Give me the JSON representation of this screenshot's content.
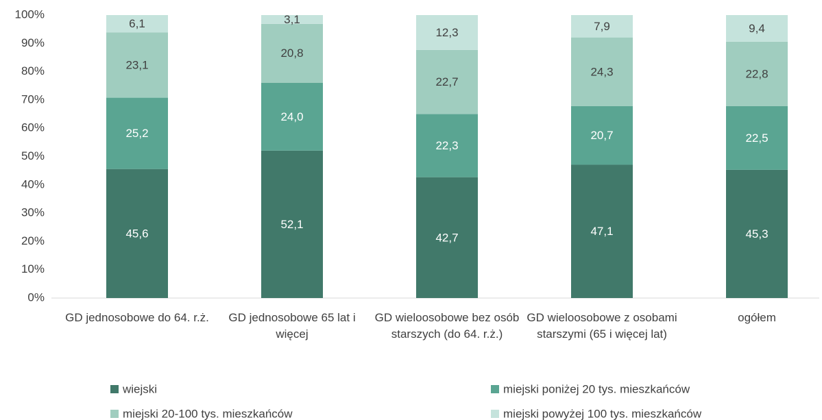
{
  "chart_data": {
    "type": "stacked_bar",
    "categories": [
      "GD jednosobowe do 64. r.ż.",
      "GD jednosobowe 65 lat i więcej",
      "GD wieloosobowe bez osób starszych (do 64. r.ż.)",
      "GD wieloosobowe z osobami starszymi (65 i więcej lat)",
      "ogółem"
    ],
    "series": [
      {
        "name": "wiejski",
        "color": "#41796a",
        "values": [
          45.6,
          52.1,
          42.7,
          47.1,
          45.3
        ],
        "value_labels": [
          "45,6",
          "52,1",
          "42,7",
          "47,1",
          "45,3"
        ]
      },
      {
        "name": "miejski poniżej 20 tys. mieszkańców",
        "color": "#5aa592",
        "values": [
          25.2,
          24.0,
          22.3,
          20.7,
          22.5
        ],
        "value_labels": [
          "25,2",
          "24,0",
          "22,3",
          "20,7",
          "22,5"
        ]
      },
      {
        "name": "miejski 20-100 tys. mieszkańców",
        "color": "#a0cdbf",
        "values": [
          23.1,
          20.8,
          22.7,
          24.3,
          22.8
        ],
        "value_labels": [
          "23,1",
          "20,8",
          "22,7",
          "24,3",
          "22,8"
        ]
      },
      {
        "name": "miejski powyżej 100 tys. mieszkańców",
        "color": "#c5e3dc",
        "values": [
          6.1,
          3.1,
          12.3,
          7.9,
          9.4
        ],
        "value_labels": [
          "6,1",
          "3,1",
          "12,3",
          "7,9",
          "9,4"
        ]
      }
    ],
    "ylim": [
      0,
      100
    ],
    "yticks": [
      {
        "value": 0,
        "label": "0%"
      },
      {
        "value": 10,
        "label": "10%"
      },
      {
        "value": 20,
        "label": "20%"
      },
      {
        "value": 30,
        "label": "30%"
      },
      {
        "value": 40,
        "label": "40%"
      },
      {
        "value": 50,
        "label": "50%"
      },
      {
        "value": 60,
        "label": "60%"
      },
      {
        "value": 70,
        "label": "70%"
      },
      {
        "value": 80,
        "label": "80%"
      },
      {
        "value": 90,
        "label": "90%"
      },
      {
        "value": 100,
        "label": "100%"
      }
    ],
    "legend": "bottom"
  }
}
